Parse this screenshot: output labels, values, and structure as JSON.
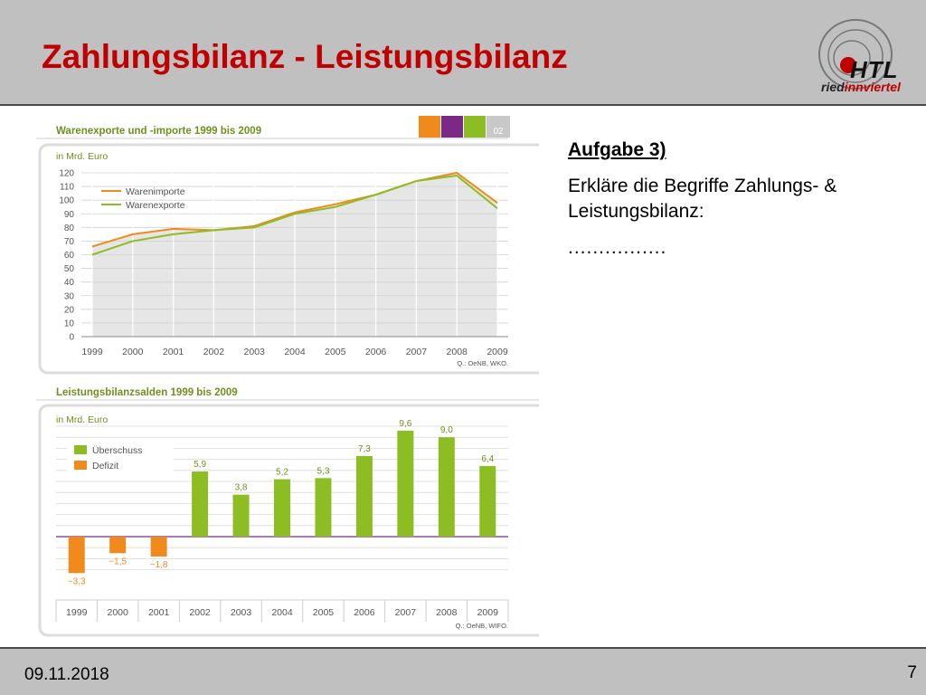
{
  "slide": {
    "title": "Zahlungsbilanz - Leistungsbilanz",
    "footer_date": "09.11.2018",
    "page_number": "7"
  },
  "logo": {
    "main_text": "HTL",
    "sub_text_part1": "ried",
    "sub_text_part2": "innviertel"
  },
  "task": {
    "heading": "Aufgabe 3)",
    "text": "Erkläre die Begriffe Zahlungs- & Leistungsbilanz:",
    "dots": "................"
  },
  "colors": {
    "orange": "#f08a1c",
    "purple": "#7a2a86",
    "green": "#8cbd23",
    "title_red": "#c00000",
    "header_green": "#6f8f1f",
    "chart_fill": "#e6e6e6",
    "chart_text": "#555555"
  },
  "chart_data": [
    {
      "type": "line",
      "title": "Warenexporte und -importe 1999 bis 2009",
      "section_number": "02",
      "ylabel": "in Mrd. Euro",
      "source": "Q.: OeNB, WKO.",
      "x": [
        "1999",
        "2000",
        "2001",
        "2002",
        "2003",
        "2004",
        "2005",
        "2006",
        "2007",
        "2008",
        "2009"
      ],
      "ylim": [
        0,
        120
      ],
      "yticks": [
        0,
        10,
        20,
        30,
        40,
        50,
        60,
        70,
        80,
        90,
        100,
        110,
        120
      ],
      "grid": true,
      "legend_position": "top-left",
      "series": [
        {
          "name": "Warenimporte",
          "color": "#f08a1c",
          "values": [
            66,
            75,
            79,
            78,
            81,
            91,
            97,
            104,
            114,
            120,
            98
          ]
        },
        {
          "name": "Warenexporte",
          "color": "#8cbd23",
          "values": [
            60,
            70,
            75,
            78,
            80,
            90,
            95,
            104,
            114,
            118,
            94
          ]
        }
      ]
    },
    {
      "type": "bar",
      "title": "Leistungsbilanzsalden 1999 bis 2009",
      "ylabel": "in Mrd. Euro",
      "source": "Q.: OeNB, WIFO.",
      "categories": [
        "1999",
        "2000",
        "2001",
        "2002",
        "2003",
        "2004",
        "2005",
        "2006",
        "2007",
        "2008",
        "2009"
      ],
      "values": [
        -3.3,
        -1.5,
        -1.8,
        5.9,
        3.8,
        5.2,
        5.3,
        7.3,
        9.6,
        9.0,
        6.4
      ],
      "value_labels": [
        "−3,3",
        "−1,5",
        "−1,8",
        "5,9",
        "3,8",
        "5,2",
        "5,3",
        "7,3",
        "9,6",
        "9,0",
        "6,4"
      ],
      "legend": [
        {
          "name": "Überschuss",
          "color": "#8cbd23"
        },
        {
          "name": "Defizit",
          "color": "#f08a1c"
        }
      ],
      "legend_position": "top-left",
      "ylim": [
        -4,
        11
      ],
      "grid": true
    }
  ]
}
